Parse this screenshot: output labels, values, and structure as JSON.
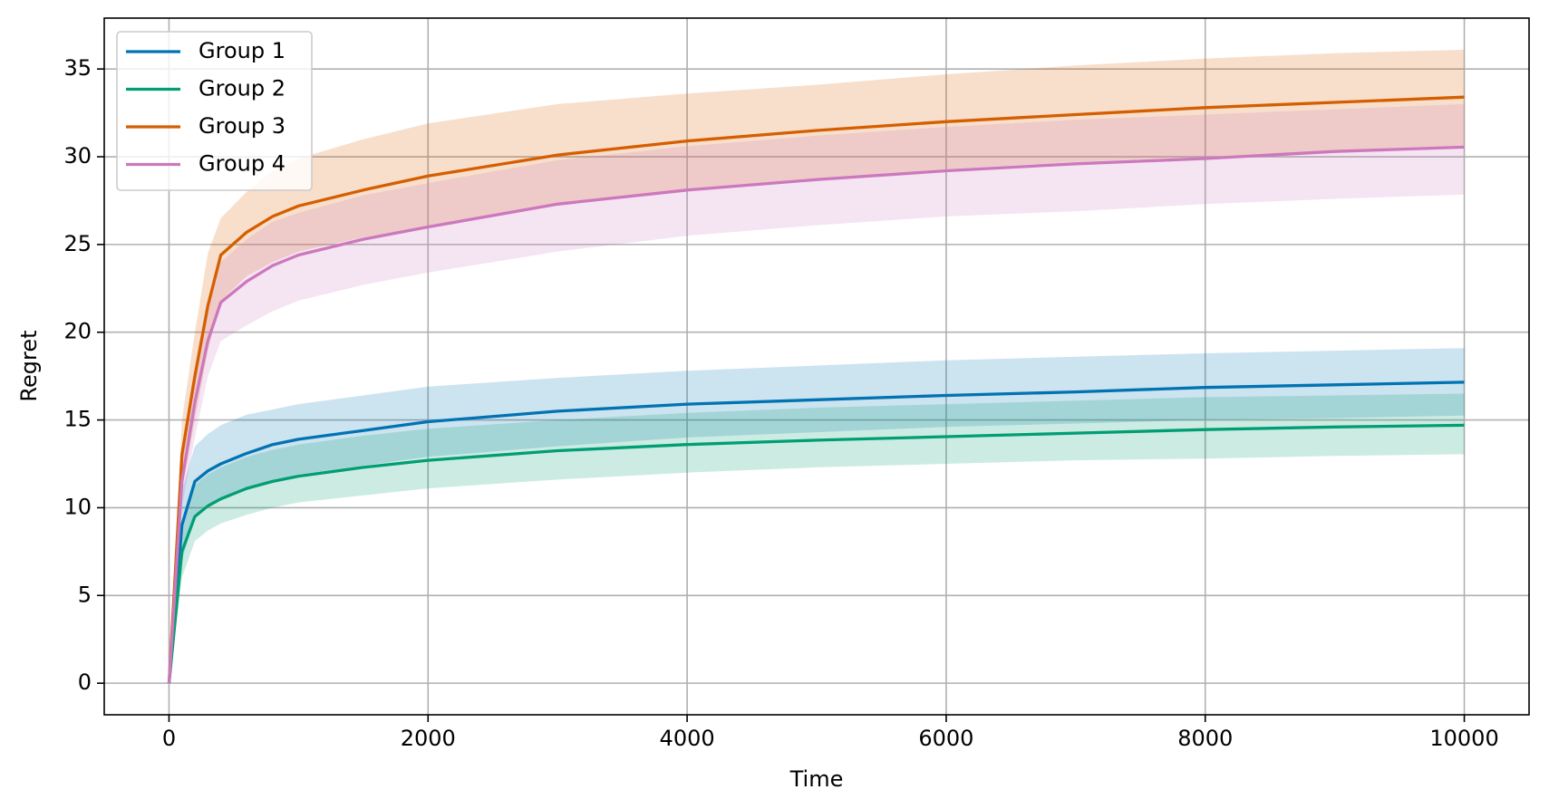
{
  "chart_data": {
    "type": "line",
    "x_label": "Time",
    "y_label": "Regret",
    "x": [
      0,
      100,
      200,
      300,
      400,
      600,
      800,
      1000,
      1500,
      2000,
      3000,
      4000,
      5000,
      6000,
      7000,
      8000,
      9000,
      10000
    ],
    "series": [
      {
        "name": "Group 1",
        "color": "#0173b2",
        "values": [
          0,
          9,
          11.5,
          12.1,
          12.5,
          13.1,
          13.6,
          13.9,
          14.4,
          14.9,
          15.5,
          15.9,
          16.15,
          16.4,
          16.6,
          16.85,
          17.0,
          17.15
        ],
        "upper": [
          0,
          11,
          13.5,
          14.2,
          14.7,
          15.3,
          15.6,
          15.9,
          16.4,
          16.9,
          17.4,
          17.8,
          18.1,
          18.4,
          18.6,
          18.8,
          18.95,
          19.1
        ],
        "lower": [
          0,
          7,
          9.5,
          10.1,
          10.5,
          11.0,
          11.5,
          11.9,
          12.4,
          12.9,
          13.5,
          14.0,
          14.3,
          14.6,
          14.8,
          15.0,
          15.1,
          15.25
        ]
      },
      {
        "name": "Group 2",
        "color": "#029e73",
        "values": [
          0,
          7.5,
          9.5,
          10.1,
          10.5,
          11.1,
          11.5,
          11.8,
          12.3,
          12.7,
          13.25,
          13.6,
          13.85,
          14.05,
          14.25,
          14.45,
          14.6,
          14.7
        ],
        "upper": [
          0,
          9,
          11.3,
          11.9,
          12.3,
          12.9,
          13.3,
          13.6,
          14.1,
          14.5,
          15.0,
          15.4,
          15.7,
          15.9,
          16.1,
          16.3,
          16.4,
          16.5
        ],
        "lower": [
          0,
          6,
          8.1,
          8.7,
          9.1,
          9.6,
          10.0,
          10.3,
          10.7,
          11.1,
          11.6,
          12.0,
          12.3,
          12.5,
          12.7,
          12.8,
          12.95,
          13.05
        ]
      },
      {
        "name": "Group 3",
        "color": "#d55e00",
        "values": [
          0,
          13,
          17.5,
          21.5,
          24.4,
          25.7,
          26.6,
          27.2,
          28.1,
          28.9,
          30.1,
          30.9,
          31.5,
          32.0,
          32.4,
          32.8,
          33.1,
          33.4
        ],
        "upper": [
          0,
          15,
          20,
          24.5,
          26.5,
          28,
          29.2,
          29.9,
          31.0,
          31.9,
          33.0,
          33.6,
          34.1,
          34.7,
          35.2,
          35.6,
          35.9,
          36.1
        ],
        "lower": [
          0,
          11,
          15,
          19,
          21.8,
          23.2,
          24.0,
          24.6,
          25.4,
          26.0,
          27.3,
          28.1,
          28.8,
          29.3,
          29.7,
          30.0,
          30.3,
          30.5
        ]
      },
      {
        "name": "Group 4",
        "color": "#cc78bc",
        "values": [
          0,
          11.5,
          16,
          19.5,
          21.7,
          22.9,
          23.8,
          24.4,
          25.3,
          26.0,
          27.3,
          28.1,
          28.7,
          29.2,
          29.6,
          29.9,
          30.3,
          30.55
        ],
        "upper": [
          0,
          13,
          18,
          21.5,
          24,
          25.3,
          26.3,
          26.8,
          27.8,
          28.5,
          29.8,
          30.6,
          31.2,
          31.7,
          32.1,
          32.4,
          32.7,
          33.0
        ],
        "lower": [
          0,
          10,
          14,
          17.5,
          19.5,
          20.4,
          21.2,
          21.8,
          22.7,
          23.4,
          24.6,
          25.5,
          26.1,
          26.6,
          26.9,
          27.3,
          27.6,
          27.85
        ]
      }
    ],
    "xlim": [
      -500,
      10500
    ],
    "ylim": [
      -1.8,
      37.9
    ],
    "xticks": [
      0,
      2000,
      4000,
      6000,
      8000,
      10000
    ],
    "yticks": [
      0,
      5,
      10,
      15,
      20,
      25,
      30,
      35
    ],
    "grid": true,
    "legend": "upper left"
  }
}
